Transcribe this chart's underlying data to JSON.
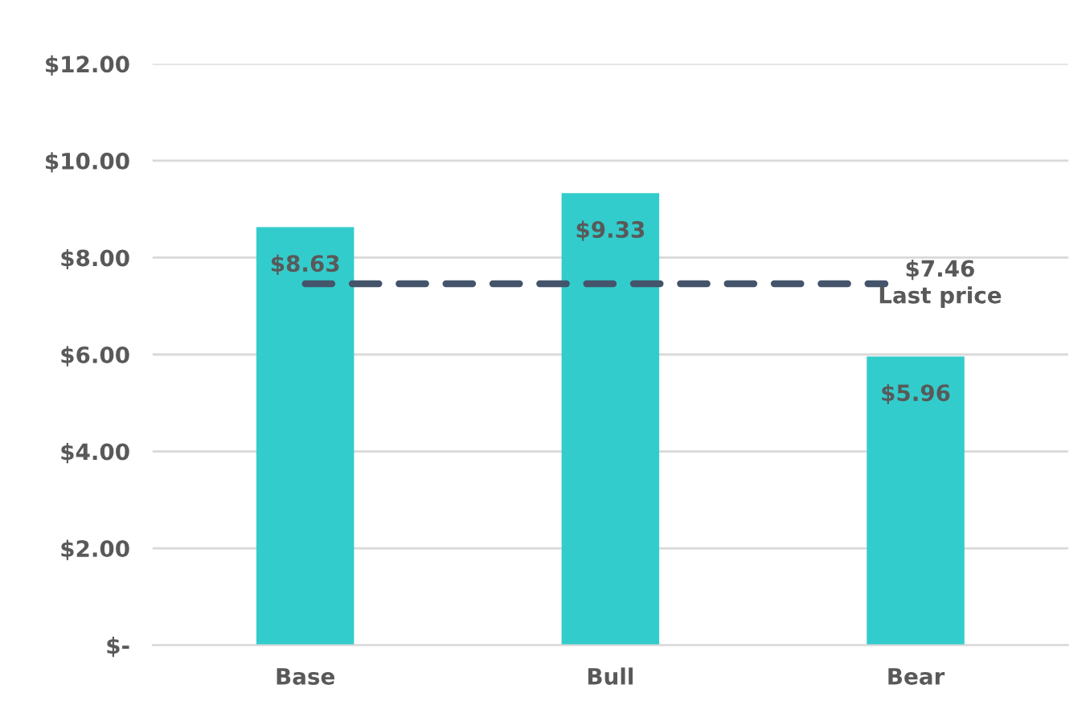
{
  "chart_data": {
    "type": "bar",
    "categories": [
      "Base",
      "Bull",
      "Bear"
    ],
    "values": [
      8.63,
      9.33,
      5.96
    ],
    "color": "#33cccc",
    "value_labels": [
      "$8.63",
      "$9.33",
      "$5.96"
    ],
    "ylim": [
      0,
      12
    ],
    "yticks": [
      {
        "value": 0,
        "label": "$-"
      },
      {
        "value": 2,
        "label": "$2.00"
      },
      {
        "value": 4,
        "label": "$4.00"
      },
      {
        "value": 6,
        "label": "$6.00"
      },
      {
        "value": 8,
        "label": "$8.00"
      },
      {
        "value": 10,
        "label": "$10.00"
      },
      {
        "value": 12,
        "label": "$12.00"
      }
    ],
    "grid": "y",
    "ref_lines": [
      {
        "axis": "y",
        "value": 7.46,
        "label": "$7.46\nLast price",
        "color": "#44546a",
        "line_style": "dashed"
      }
    ]
  }
}
